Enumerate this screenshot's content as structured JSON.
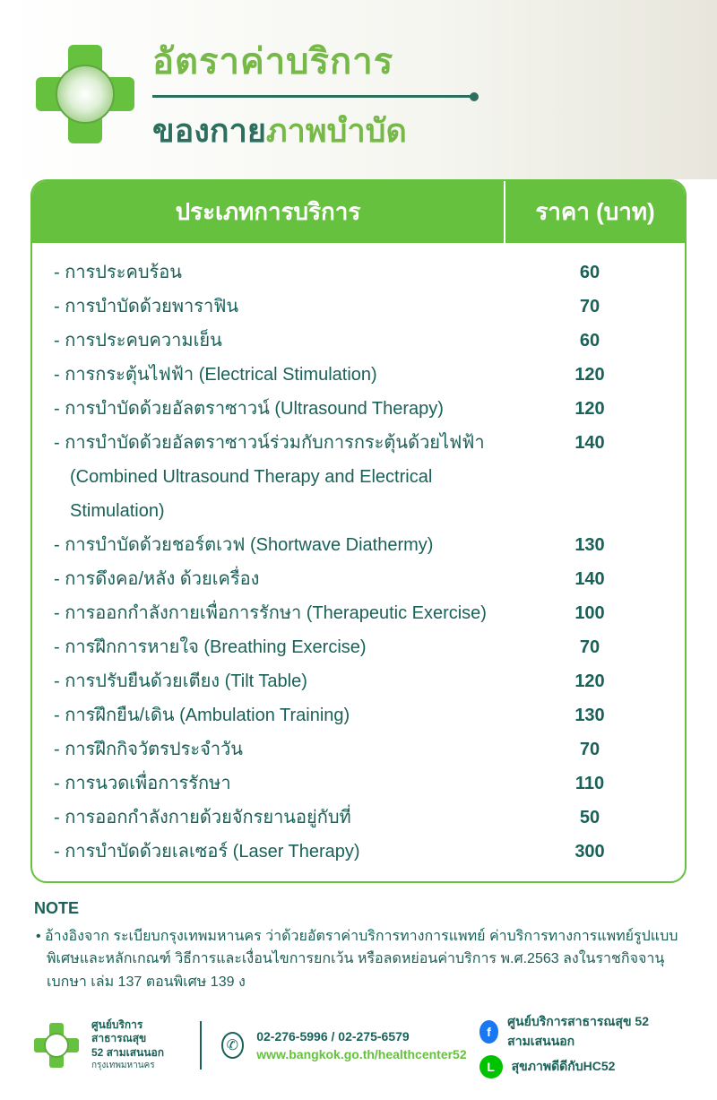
{
  "colors": {
    "accent_green": "#65c13e",
    "text_teal": "#1a6159",
    "title_green": "#76b948",
    "title_teal": "#2d6e5e",
    "white": "#ffffff"
  },
  "header": {
    "title_line1": "อัตราค่าบริการ",
    "title_line2_a": "ของกาย",
    "title_line2_b": "ภาพบำบัด"
  },
  "table": {
    "header_service": "ประเภทการบริการ",
    "header_price": "ราคา (บาท)",
    "font_size": 20,
    "rows": [
      {
        "service": "- การประคบร้อน",
        "price": "60"
      },
      {
        "service": "- การบำบัดด้วยพาราฟิน",
        "price": "70"
      },
      {
        "service": "- การประคบความเย็น",
        "price": "60"
      },
      {
        "service": "- การกระตุ้นไฟฟ้า (Electrical Stimulation)",
        "price": "120"
      },
      {
        "service": "- การบำบัดด้วยอัลตราซาวน์ (Ultrasound Therapy)",
        "price": "120"
      },
      {
        "service": "- การบำบัดด้วยอัลตราซาวน์ร่วมกับการกระตุ้นด้วยไฟฟ้า",
        "price": "140"
      },
      {
        "service": "  (Combined Ultrasound Therapy and Electrical Stimulation)",
        "price": "",
        "sub": true
      },
      {
        "service": "- การบำบัดด้วยชอร์ตเวฟ (Shortwave Diathermy)",
        "price": "130"
      },
      {
        "service": "- การดึงคอ/หลัง ด้วยเครื่อง",
        "price": "140"
      },
      {
        "service": "- การออกกำลังกายเพื่อการรักษา (Therapeutic Exercise)",
        "price": "100"
      },
      {
        "service": "- การฝึกการหายใจ (Breathing Exercise)",
        "price": "70"
      },
      {
        "service": "- การปรับยืนด้วยเตียง (Tilt Table)",
        "price": "120"
      },
      {
        "service": "- การฝึกยืน/เดิน (Ambulation Training)",
        "price": "130"
      },
      {
        "service": "- การฝึกกิจวัตรประจำวัน",
        "price": "70"
      },
      {
        "service": "- การนวดเพื่อการรักษา",
        "price": "110"
      },
      {
        "service": "- การออกกำลังกายด้วยจักรยานอยู่กับที่",
        "price": "50"
      },
      {
        "service": "- การบำบัดด้วยเลเซอร์ (Laser Therapy)",
        "price": "300"
      }
    ]
  },
  "note": {
    "title": "NOTE",
    "text": "• อ้างอิงจาก ระเบียบกรุงเทพมหานคร ว่าด้วยอัตราค่าบริการทางการแพทย์ ค่าบริการทางการแพทย์รูปแบบพิเศษและหลักเกณฑ์ วิธีการและเงื่อนไขการยกเว้น หรือลดหย่อนค่าบริการ พ.ศ.2563 ลงในราชกิจจานุเบกษา เล่ม 137 ตอนพิเศษ 139 ง"
  },
  "footer": {
    "org_line1": "ศูนย์บริการสาธารณสุข",
    "org_line2": "52 สามเสนนอก",
    "org_line3": "กรุงเทพมหานคร",
    "phone": "02-276-5996 / 02-275-6579",
    "website": "www.bangkok.go.th/healthcenter52",
    "facebook": "ศูนย์บริการสาธารณสุข 52 สามเสนนอก",
    "line": "สุขภาพดีดีกับHC52"
  }
}
